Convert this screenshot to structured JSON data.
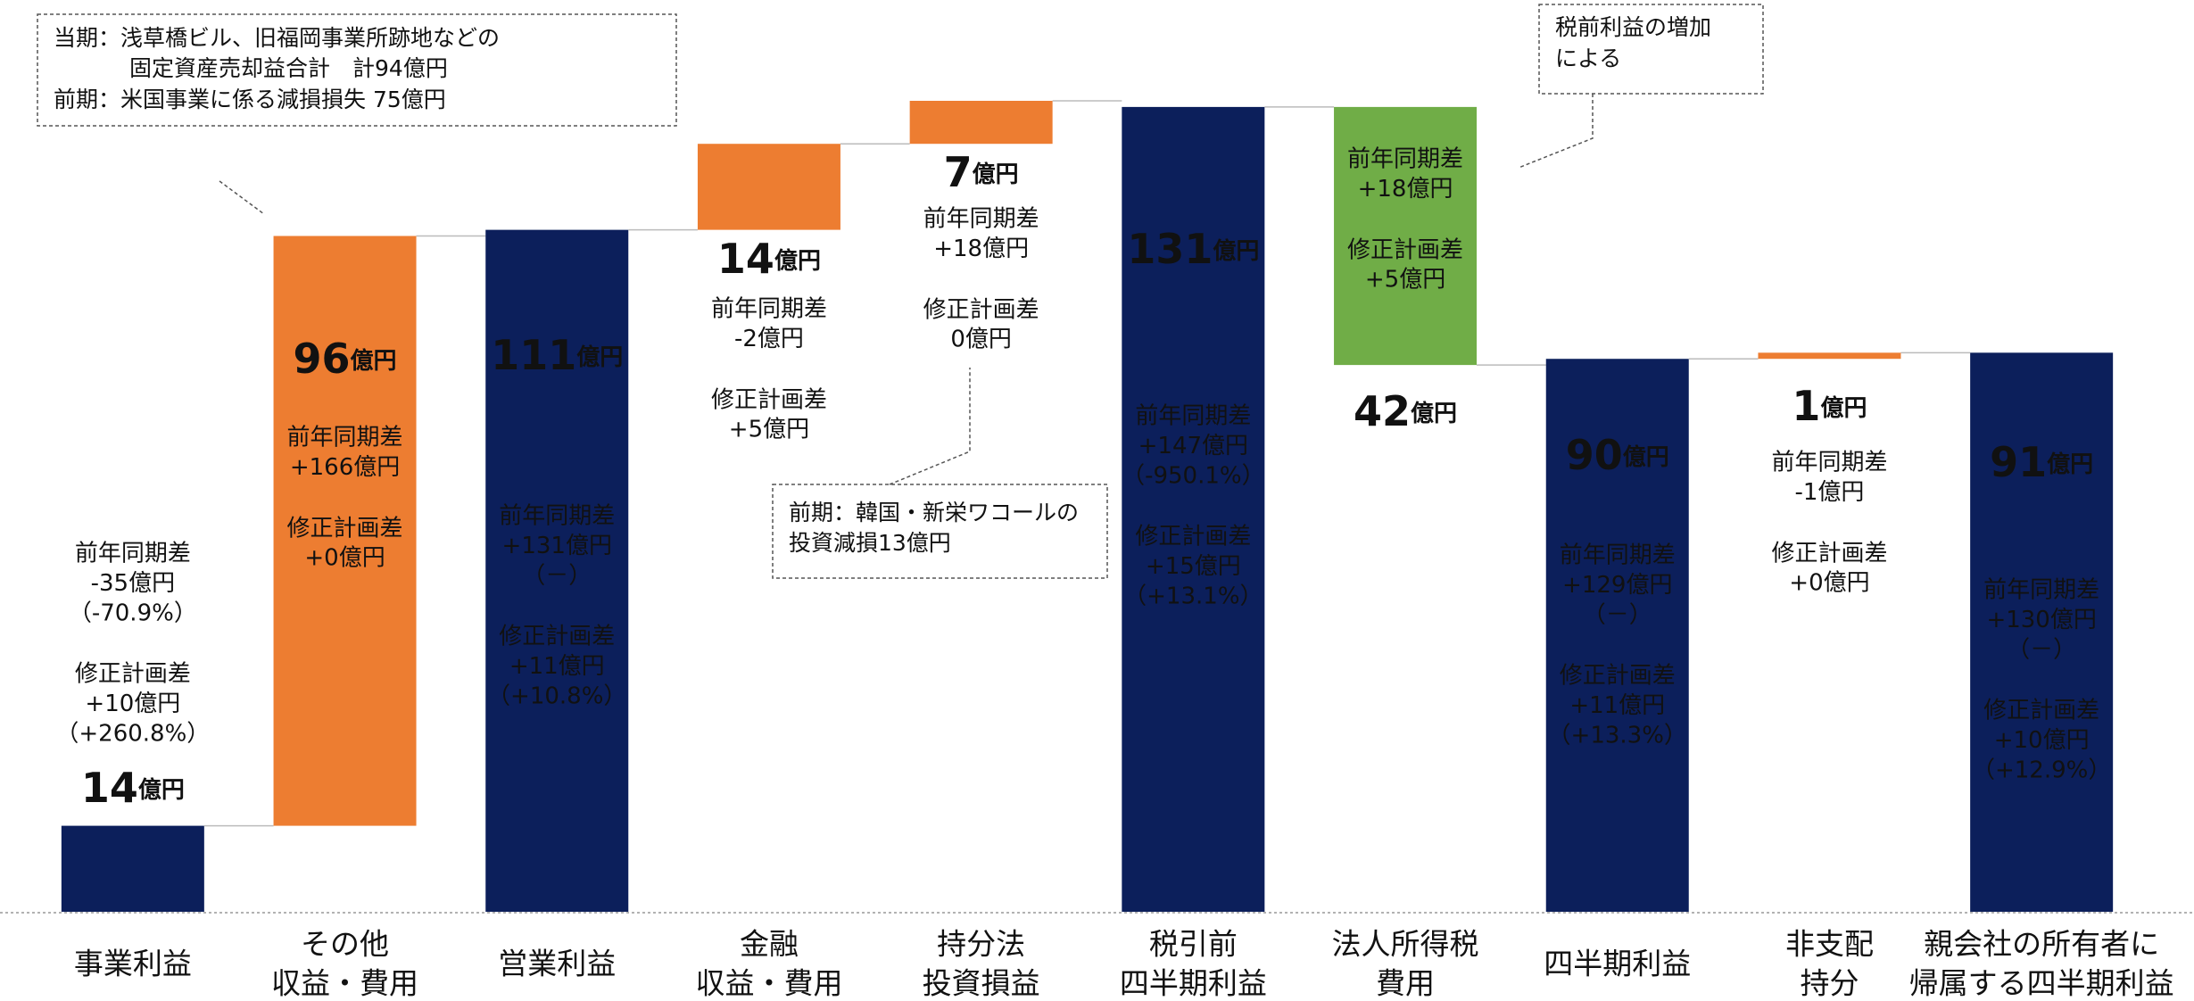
{
  "chart_data": {
    "type": "waterfall",
    "categories": [
      [
        "事業利益"
      ],
      [
        "その他",
        "収益・費用"
      ],
      [
        "営業利益"
      ],
      [
        "金融",
        "収益・費用"
      ],
      [
        "持分法",
        "投資損益"
      ],
      [
        "税引前",
        "四半期利益"
      ],
      [
        "法人所得税",
        "費用"
      ],
      [
        "四半期利益"
      ],
      [
        "非支配",
        "持分"
      ],
      [
        "親会社の所有者に",
        "帰属する四半期利益"
      ]
    ],
    "values": [
      14,
      96,
      111,
      14,
      7,
      131,
      -42,
      90,
      1,
      91
    ],
    "value_labels": [
      "14億円",
      "96億円",
      "111億円",
      "14億円",
      "7億円",
      "131億円",
      "42億円",
      "90億円",
      "1億円",
      "91億円"
    ],
    "measure": [
      "absolute",
      "relative",
      "absolute",
      "relative",
      "relative",
      "absolute",
      "relative",
      "absolute",
      "relative",
      "absolute"
    ],
    "colors": [
      "#0c1f5b",
      "#ed7d31",
      "#0c1f5b",
      "#ed7d31",
      "#ed7d31",
      "#0c1f5b",
      "#70ad47",
      "#0c1f5b",
      "#ed7d31",
      "#0c1f5b"
    ],
    "notes": [
      [
        [
          "前年同期差",
          "-35億円",
          "（-70.9%）"
        ],
        [
          "修正計画差",
          "+10億円",
          "（+260.8%）"
        ]
      ],
      [
        [
          "前年同期差",
          "+166億円"
        ],
        [
          "修正計画差",
          "+0億円"
        ]
      ],
      [
        [
          "前年同期差",
          "+131億円",
          "（－）"
        ],
        [
          "修正計画差",
          "+11億円",
          "（+10.8%）"
        ]
      ],
      [
        [
          "前年同期差",
          "-2億円"
        ],
        [
          "修正計画差",
          "+5億円"
        ]
      ],
      [
        [
          "前年同期差",
          "+18億円"
        ],
        [
          "修正計画差",
          "0億円"
        ]
      ],
      [
        [
          "前年同期差",
          "+147億円",
          "（-950.1%）"
        ],
        [
          "修正計画差",
          "+15億円",
          "（+13.1%）"
        ]
      ],
      [
        [
          "前年同期差",
          "+18億円"
        ],
        [
          "修正計画差",
          "+5億円"
        ]
      ],
      [
        [
          "前年同期差",
          "+129億円",
          "（－）"
        ],
        [
          "修正計画差",
          "+11億円",
          "（+13.3%）"
        ]
      ],
      [
        [
          "前年同期差",
          "-1億円"
        ],
        [
          "修正計画差",
          "+0億円"
        ]
      ],
      [
        [
          "前年同期差",
          "+130億円",
          "（－）"
        ],
        [
          "修正計画差",
          "+10億円",
          "（+12.9%）"
        ]
      ]
    ],
    "callouts": [
      [
        "当期：浅草橋ビル、旧福岡事業所跡地などの",
        "固定資産売却益合計　計94億円",
        "前期：米国事業に係る減損損失 75億円"
      ],
      [
        "前期：韓国・新栄ワコールの",
        "投資減損13億円"
      ],
      [
        "税前利益の増加",
        "による"
      ]
    ]
  }
}
